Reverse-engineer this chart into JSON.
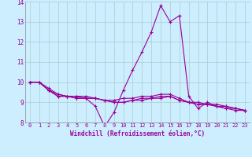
{
  "title": "",
  "xlabel": "Windchill (Refroidissement éolien,°C)",
  "bg_color": "#cceeff",
  "grid_color": "#aacccc",
  "line_color": "#990099",
  "xlim": [
    -0.5,
    23.5
  ],
  "ylim": [
    8,
    14
  ],
  "yticks": [
    8,
    9,
    10,
    11,
    12,
    13,
    14
  ],
  "xticks": [
    0,
    1,
    2,
    3,
    4,
    5,
    6,
    7,
    8,
    9,
    10,
    11,
    12,
    13,
    14,
    15,
    16,
    17,
    18,
    19,
    20,
    21,
    22,
    23
  ],
  "series1_x": [
    0,
    1,
    2,
    3,
    4,
    5,
    6,
    7,
    8,
    9,
    10,
    11,
    12,
    13,
    14,
    15,
    16,
    17,
    18,
    19,
    20,
    21,
    22,
    23
  ],
  "series1_y": [
    10.0,
    10.0,
    9.6,
    9.3,
    9.3,
    9.2,
    9.2,
    8.8,
    7.8,
    8.5,
    9.6,
    10.6,
    11.5,
    12.5,
    13.8,
    13.0,
    13.3,
    9.3,
    8.7,
    9.0,
    8.8,
    8.8,
    8.7,
    8.6
  ],
  "series2_x": [
    0,
    1,
    2,
    3,
    4,
    5,
    6,
    7,
    8,
    9,
    10,
    11,
    12,
    13,
    14,
    15,
    16,
    17,
    18,
    19,
    20,
    21,
    22,
    23
  ],
  "series2_y": [
    10.0,
    10.0,
    9.7,
    9.4,
    9.3,
    9.3,
    9.3,
    9.2,
    9.1,
    9.1,
    9.2,
    9.2,
    9.3,
    9.3,
    9.4,
    9.4,
    9.2,
    9.0,
    9.0,
    8.9,
    8.9,
    8.8,
    8.7,
    8.6
  ],
  "series3_x": [
    0,
    1,
    2,
    3,
    4,
    5,
    6,
    7,
    8,
    9,
    10,
    11,
    12,
    13,
    14,
    15,
    16,
    17,
    18,
    19,
    20,
    21,
    22,
    23
  ],
  "series3_y": [
    10.0,
    10.0,
    9.6,
    9.3,
    9.3,
    9.2,
    9.2,
    9.2,
    9.1,
    9.0,
    9.0,
    9.1,
    9.2,
    9.2,
    9.3,
    9.3,
    9.1,
    9.0,
    8.9,
    8.9,
    8.8,
    8.7,
    8.7,
    8.6
  ],
  "series4_x": [
    0,
    1,
    2,
    3,
    4,
    5,
    6,
    7,
    8,
    9,
    10,
    11,
    12,
    13,
    14,
    15,
    16,
    17,
    18,
    19,
    20,
    21,
    22,
    23
  ],
  "series4_y": [
    10.0,
    10.0,
    9.6,
    9.4,
    9.3,
    9.3,
    9.2,
    9.2,
    9.1,
    9.0,
    9.0,
    9.1,
    9.1,
    9.2,
    9.2,
    9.3,
    9.1,
    9.0,
    8.9,
    8.9,
    8.8,
    8.7,
    8.6,
    8.6
  ],
  "label_fontsize": 5.0,
  "tick_fontsize": 5.0,
  "xlabel_fontsize": 5.5,
  "linewidth": 0.8,
  "markersize": 3.0
}
